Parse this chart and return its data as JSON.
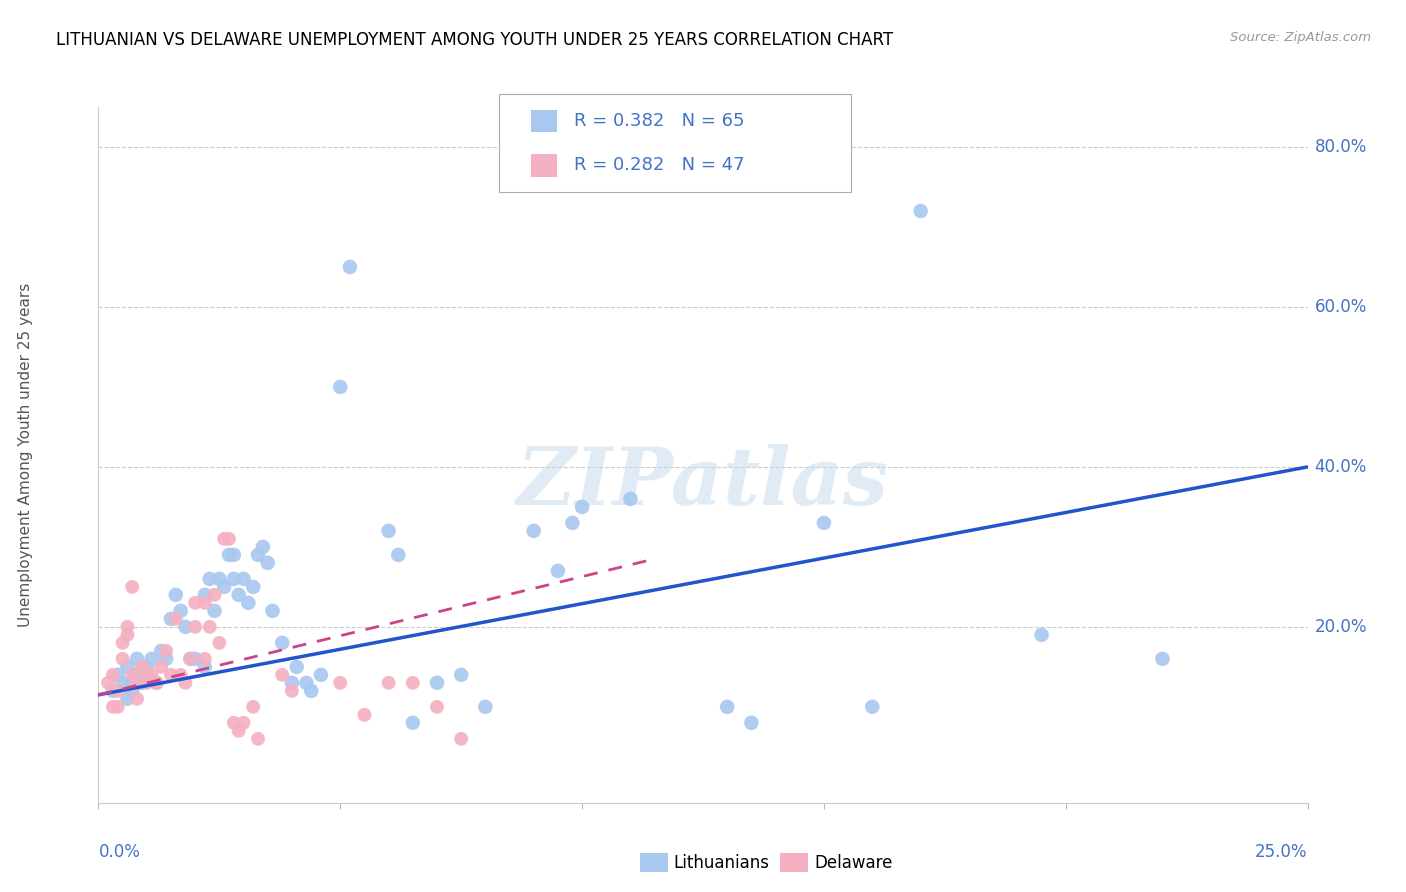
{
  "title": "LITHUANIAN VS DELAWARE UNEMPLOYMENT AMONG YOUTH UNDER 25 YEARS CORRELATION CHART",
  "source": "Source: ZipAtlas.com",
  "ylabel": "Unemployment Among Youth under 25 years",
  "yaxis_labels": [
    "",
    "20.0%",
    "40.0%",
    "60.0%",
    "80.0%"
  ],
  "yaxis_values": [
    0.0,
    0.2,
    0.4,
    0.6,
    0.8
  ],
  "xmin": 0.0,
  "xmax": 0.25,
  "ymin": -0.02,
  "ymax": 0.85,
  "blue_color": "#a8c8f0",
  "pink_color": "#f4b0c0",
  "line_blue_color": "#2255cc",
  "line_pink_color": "#cc4488",
  "watermark": "ZIPatlas",
  "blue_line_x0": 0.0,
  "blue_line_y0": 0.115,
  "blue_line_x1": 0.25,
  "blue_line_y1": 0.4,
  "pink_line_x0": 0.0,
  "pink_line_y0": 0.115,
  "pink_line_x1": 0.115,
  "pink_line_y1": 0.285,
  "blue_scatter": [
    [
      0.003,
      0.12
    ],
    [
      0.004,
      0.14
    ],
    [
      0.005,
      0.13
    ],
    [
      0.006,
      0.11
    ],
    [
      0.006,
      0.15
    ],
    [
      0.007,
      0.13
    ],
    [
      0.007,
      0.12
    ],
    [
      0.008,
      0.14
    ],
    [
      0.008,
      0.16
    ],
    [
      0.009,
      0.13
    ],
    [
      0.01,
      0.15
    ],
    [
      0.01,
      0.14
    ],
    [
      0.011,
      0.16
    ],
    [
      0.012,
      0.13
    ],
    [
      0.013,
      0.17
    ],
    [
      0.014,
      0.16
    ],
    [
      0.015,
      0.21
    ],
    [
      0.016,
      0.24
    ],
    [
      0.017,
      0.22
    ],
    [
      0.018,
      0.2
    ],
    [
      0.019,
      0.16
    ],
    [
      0.02,
      0.16
    ],
    [
      0.022,
      0.15
    ],
    [
      0.022,
      0.24
    ],
    [
      0.023,
      0.26
    ],
    [
      0.024,
      0.22
    ],
    [
      0.025,
      0.26
    ],
    [
      0.026,
      0.25
    ],
    [
      0.027,
      0.29
    ],
    [
      0.028,
      0.26
    ],
    [
      0.028,
      0.29
    ],
    [
      0.029,
      0.24
    ],
    [
      0.03,
      0.26
    ],
    [
      0.031,
      0.23
    ],
    [
      0.032,
      0.25
    ],
    [
      0.033,
      0.29
    ],
    [
      0.034,
      0.3
    ],
    [
      0.035,
      0.28
    ],
    [
      0.036,
      0.22
    ],
    [
      0.038,
      0.18
    ],
    [
      0.04,
      0.13
    ],
    [
      0.041,
      0.15
    ],
    [
      0.043,
      0.13
    ],
    [
      0.044,
      0.12
    ],
    [
      0.046,
      0.14
    ],
    [
      0.05,
      0.5
    ],
    [
      0.052,
      0.65
    ],
    [
      0.06,
      0.32
    ],
    [
      0.062,
      0.29
    ],
    [
      0.065,
      0.08
    ],
    [
      0.07,
      0.13
    ],
    [
      0.075,
      0.14
    ],
    [
      0.08,
      0.1
    ],
    [
      0.09,
      0.32
    ],
    [
      0.095,
      0.27
    ],
    [
      0.098,
      0.33
    ],
    [
      0.1,
      0.35
    ],
    [
      0.11,
      0.36
    ],
    [
      0.13,
      0.1
    ],
    [
      0.135,
      0.08
    ],
    [
      0.15,
      0.33
    ],
    [
      0.16,
      0.1
    ],
    [
      0.17,
      0.72
    ],
    [
      0.195,
      0.19
    ],
    [
      0.22,
      0.16
    ]
  ],
  "pink_scatter": [
    [
      0.002,
      0.13
    ],
    [
      0.003,
      0.1
    ],
    [
      0.003,
      0.14
    ],
    [
      0.004,
      0.12
    ],
    [
      0.004,
      0.1
    ],
    [
      0.005,
      0.18
    ],
    [
      0.005,
      0.16
    ],
    [
      0.006,
      0.2
    ],
    [
      0.006,
      0.19
    ],
    [
      0.007,
      0.25
    ],
    [
      0.007,
      0.14
    ],
    [
      0.008,
      0.13
    ],
    [
      0.008,
      0.11
    ],
    [
      0.009,
      0.15
    ],
    [
      0.01,
      0.14
    ],
    [
      0.01,
      0.13
    ],
    [
      0.011,
      0.14
    ],
    [
      0.012,
      0.13
    ],
    [
      0.013,
      0.15
    ],
    [
      0.014,
      0.17
    ],
    [
      0.015,
      0.14
    ],
    [
      0.016,
      0.21
    ],
    [
      0.017,
      0.14
    ],
    [
      0.018,
      0.13
    ],
    [
      0.019,
      0.16
    ],
    [
      0.02,
      0.2
    ],
    [
      0.02,
      0.23
    ],
    [
      0.022,
      0.23
    ],
    [
      0.022,
      0.16
    ],
    [
      0.023,
      0.2
    ],
    [
      0.024,
      0.24
    ],
    [
      0.025,
      0.18
    ],
    [
      0.026,
      0.31
    ],
    [
      0.027,
      0.31
    ],
    [
      0.028,
      0.08
    ],
    [
      0.029,
      0.07
    ],
    [
      0.03,
      0.08
    ],
    [
      0.032,
      0.1
    ],
    [
      0.033,
      0.06
    ],
    [
      0.038,
      0.14
    ],
    [
      0.04,
      0.12
    ],
    [
      0.05,
      0.13
    ],
    [
      0.055,
      0.09
    ],
    [
      0.06,
      0.13
    ],
    [
      0.065,
      0.13
    ],
    [
      0.07,
      0.1
    ],
    [
      0.075,
      0.06
    ]
  ]
}
